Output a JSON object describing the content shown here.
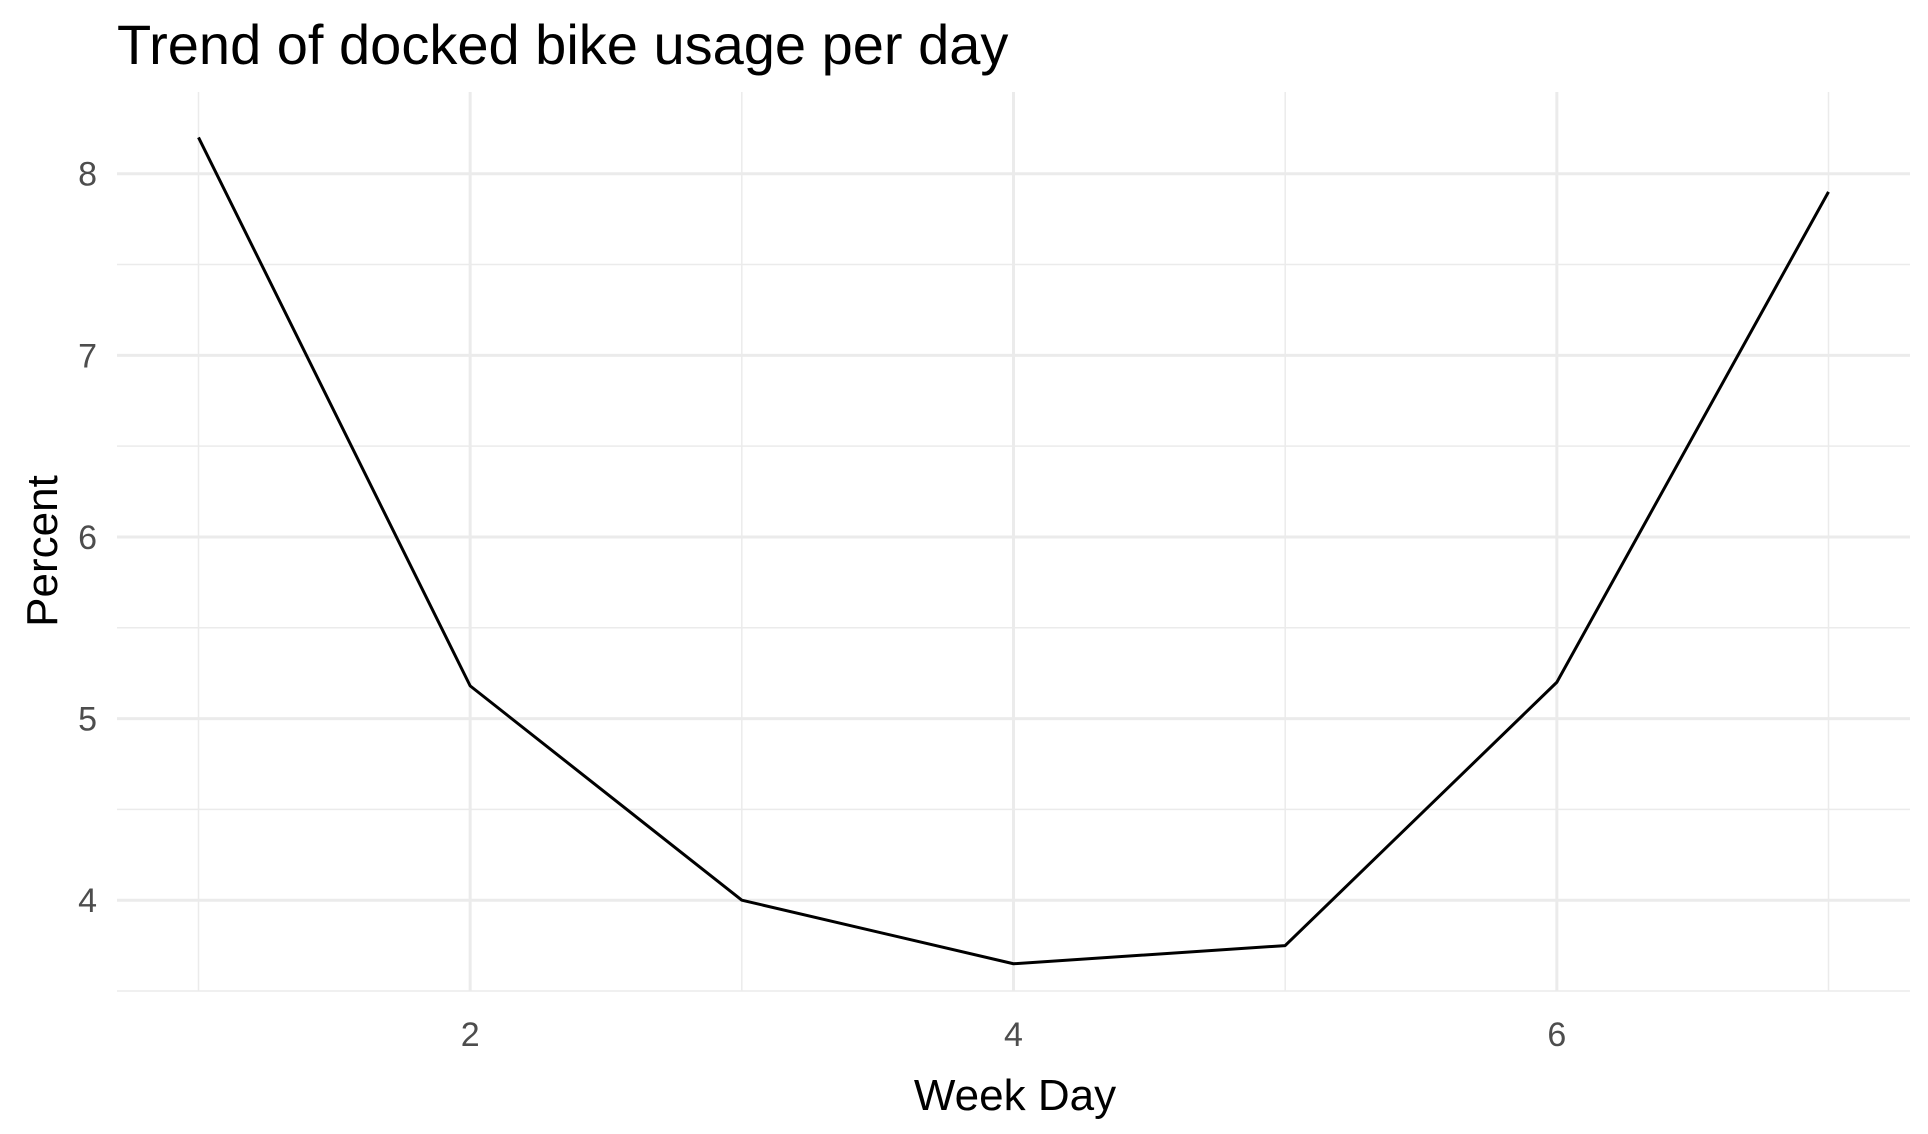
{
  "chart_data": {
    "type": "line",
    "title": "Trend of docked bike usage per day",
    "xlabel": "Week Day",
    "ylabel": "Percent",
    "x": [
      1,
      2,
      3,
      4,
      5,
      6,
      7
    ],
    "series": [
      {
        "values": [
          8.2,
          5.18,
          4.0,
          3.65,
          3.75,
          5.2,
          7.9
        ],
        "color": "#000000"
      }
    ],
    "xlim": [
      0.7,
      7.3
    ],
    "ylim": [
      3.5,
      8.45
    ],
    "x_ticks": [
      2,
      4,
      6
    ],
    "x_tick_labels": [
      "2",
      "4",
      "6"
    ],
    "x_minor_ticks": [
      1,
      3,
      5,
      7
    ],
    "y_ticks": [
      4,
      5,
      6,
      7,
      8
    ],
    "y_tick_labels": [
      "4",
      "5",
      "6",
      "7",
      "8"
    ],
    "y_minor_ticks": [
      3.5,
      4.5,
      5.5,
      6.5,
      7.5
    ],
    "grid": true,
    "legend": "none",
    "colors": {
      "background": "#ffffff",
      "grid": "#ebebeb",
      "line": "#000000",
      "tick_text": "#4d4d4d",
      "title_text": "#000000"
    }
  }
}
